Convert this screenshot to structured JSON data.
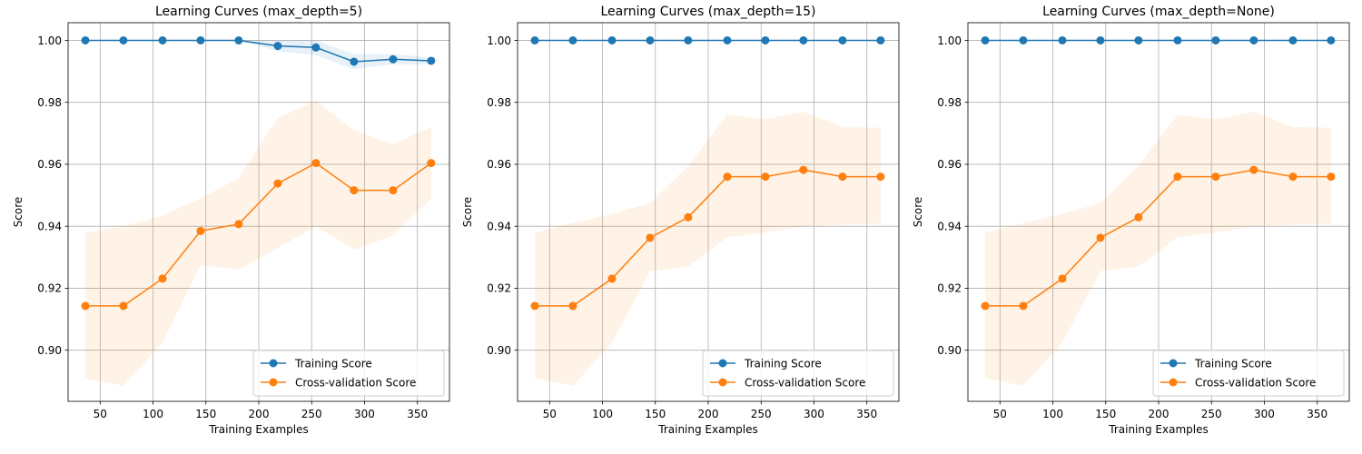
{
  "chart_data": [
    {
      "type": "line",
      "title": "Learning Curves (max_depth=5)",
      "xlabel": "Training Examples",
      "ylabel": "Score",
      "xlim": [
        19.7,
        380.3
      ],
      "ylim": [
        0.8835,
        1.0057
      ],
      "xticks": [
        50,
        100,
        150,
        200,
        250,
        300,
        350
      ],
      "yticks": [
        0.9,
        0.92,
        0.94,
        0.96,
        0.98,
        1.0
      ],
      "ytick_labels": [
        "0.90",
        "0.92",
        "0.94",
        "0.96",
        "0.98",
        "1.00"
      ],
      "grid": true,
      "legend_position": "lower right",
      "x": [
        36,
        72,
        109,
        145,
        181,
        218,
        254,
        290,
        327,
        363
      ],
      "series": [
        {
          "name": "Training Score",
          "color": "#1f77b4",
          "values": [
            1.0,
            1.0,
            1.0,
            1.0,
            1.0,
            0.9982,
            0.9977,
            0.9931,
            0.9939,
            0.9934
          ],
          "band_upper": [
            1.0,
            1.0,
            1.0,
            1.0,
            1.0,
            1.0,
            1.0,
            0.9955,
            0.9955,
            0.9945
          ],
          "band_lower": [
            1.0,
            1.0,
            1.0,
            1.0,
            1.0,
            0.9965,
            0.9952,
            0.9907,
            0.9923,
            0.9923
          ]
        },
        {
          "name": "Cross-validation Score",
          "color": "#ff7f0e",
          "values": [
            0.9143,
            0.9143,
            0.9231,
            0.9385,
            0.9407,
            0.9538,
            0.9604,
            0.9516,
            0.9516,
            0.9604
          ],
          "band_upper": [
            0.938,
            0.94,
            0.9435,
            0.949,
            0.9555,
            0.975,
            0.9805,
            0.971,
            0.9665,
            0.972
          ],
          "band_lower": [
            0.891,
            0.8885,
            0.9025,
            0.9275,
            0.926,
            0.933,
            0.94,
            0.9325,
            0.937,
            0.949
          ]
        }
      ]
    },
    {
      "type": "line",
      "title": "Learning Curves (max_depth=15)",
      "xlabel": "Training Examples",
      "ylabel": "Score",
      "xlim": [
        19.7,
        380.3
      ],
      "ylim": [
        0.8835,
        1.0057
      ],
      "xticks": [
        50,
        100,
        150,
        200,
        250,
        300,
        350
      ],
      "yticks": [
        0.9,
        0.92,
        0.94,
        0.96,
        0.98,
        1.0
      ],
      "ytick_labels": [
        "0.90",
        "0.92",
        "0.94",
        "0.96",
        "0.98",
        "1.00"
      ],
      "grid": true,
      "legend_position": "lower right",
      "x": [
        36,
        72,
        109,
        145,
        181,
        218,
        254,
        290,
        327,
        363
      ],
      "series": [
        {
          "name": "Training Score",
          "color": "#1f77b4",
          "values": [
            1.0,
            1.0,
            1.0,
            1.0,
            1.0,
            1.0,
            1.0,
            1.0,
            1.0,
            1.0
          ],
          "band_upper": [
            1.0,
            1.0,
            1.0,
            1.0,
            1.0,
            1.0,
            1.0,
            1.0,
            1.0,
            1.0
          ],
          "band_lower": [
            1.0,
            1.0,
            1.0,
            1.0,
            1.0,
            1.0,
            1.0,
            1.0,
            1.0,
            1.0
          ]
        },
        {
          "name": "Cross-validation Score",
          "color": "#ff7f0e",
          "values": [
            0.9143,
            0.9143,
            0.9231,
            0.9363,
            0.9429,
            0.956,
            0.956,
            0.9582,
            0.956,
            0.956
          ],
          "band_upper": [
            0.938,
            0.941,
            0.944,
            0.9475,
            0.9595,
            0.976,
            0.9745,
            0.977,
            0.972,
            0.9718
          ],
          "band_lower": [
            0.891,
            0.8885,
            0.9025,
            0.9255,
            0.927,
            0.9365,
            0.938,
            0.94,
            0.9405,
            0.9408
          ]
        }
      ]
    },
    {
      "type": "line",
      "title": "Learning Curves (max_depth=None)",
      "xlabel": "Training Examples",
      "ylabel": "Score",
      "xlim": [
        19.7,
        380.3
      ],
      "ylim": [
        0.8835,
        1.0057
      ],
      "xticks": [
        50,
        100,
        150,
        200,
        250,
        300,
        350
      ],
      "yticks": [
        0.9,
        0.92,
        0.94,
        0.96,
        0.98,
        1.0
      ],
      "ytick_labels": [
        "0.90",
        "0.92",
        "0.94",
        "0.96",
        "0.98",
        "1.00"
      ],
      "grid": true,
      "legend_position": "lower right",
      "x": [
        36,
        72,
        109,
        145,
        181,
        218,
        254,
        290,
        327,
        363
      ],
      "series": [
        {
          "name": "Training Score",
          "color": "#1f77b4",
          "values": [
            1.0,
            1.0,
            1.0,
            1.0,
            1.0,
            1.0,
            1.0,
            1.0,
            1.0,
            1.0
          ],
          "band_upper": [
            1.0,
            1.0,
            1.0,
            1.0,
            1.0,
            1.0,
            1.0,
            1.0,
            1.0,
            1.0
          ],
          "band_lower": [
            1.0,
            1.0,
            1.0,
            1.0,
            1.0,
            1.0,
            1.0,
            1.0,
            1.0,
            1.0
          ]
        },
        {
          "name": "Cross-validation Score",
          "color": "#ff7f0e",
          "values": [
            0.9143,
            0.9143,
            0.9231,
            0.9363,
            0.9429,
            0.956,
            0.956,
            0.9582,
            0.956,
            0.956
          ],
          "band_upper": [
            0.938,
            0.941,
            0.944,
            0.9475,
            0.9595,
            0.976,
            0.9745,
            0.977,
            0.972,
            0.9718
          ],
          "band_lower": [
            0.891,
            0.8885,
            0.9025,
            0.9255,
            0.927,
            0.9365,
            0.938,
            0.94,
            0.9405,
            0.9408
          ]
        }
      ]
    }
  ]
}
